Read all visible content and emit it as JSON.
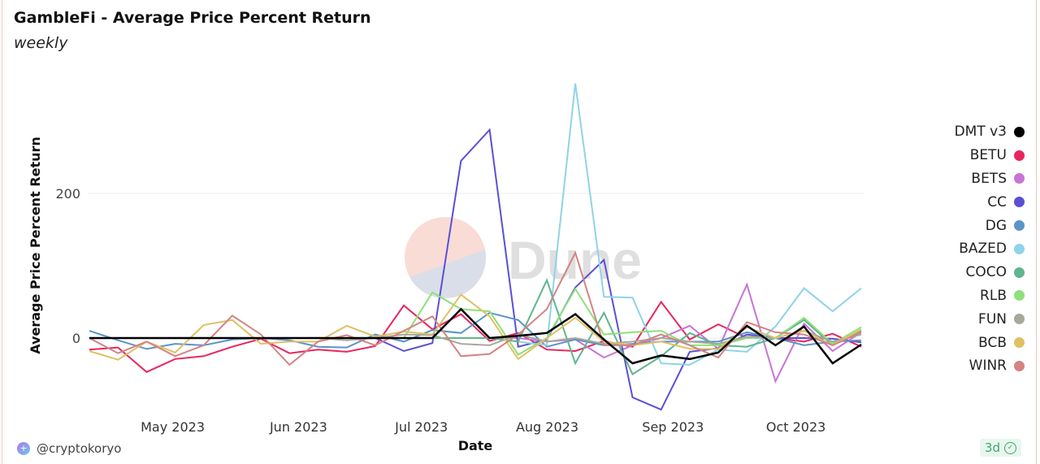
{
  "header": {
    "title": "GambleFi - Average Price Percent Return",
    "subtitle": "weekly"
  },
  "footer": {
    "author": "@cryptokoryo",
    "refresh_badge": "3d"
  },
  "watermark": "Dune",
  "chart_data": {
    "type": "line",
    "title": "GambleFi - Average Price Percent Return",
    "subtitle": "weekly",
    "xlabel": "Date",
    "ylabel": "Average Price Percent Return",
    "ylim": [
      -100,
      377
    ],
    "y_ticks": [
      0,
      200
    ],
    "x_tick_labels": [
      {
        "label": "May 2023",
        "week_index": 3
      },
      {
        "label": "Jun 2023",
        "week_index": 7.4
      },
      {
        "label": "Jul 2023",
        "week_index": 11.7
      },
      {
        "label": "Aug 2023",
        "week_index": 16.1
      },
      {
        "label": "Sep 2023",
        "week_index": 20.5
      },
      {
        "label": "Oct 2023",
        "week_index": 24.8
      }
    ],
    "grid": true,
    "legend_position": "right",
    "x": [
      "2023-04-10",
      "2023-04-17",
      "2023-04-24",
      "2023-05-01",
      "2023-05-08",
      "2023-05-15",
      "2023-05-22",
      "2023-05-29",
      "2023-06-05",
      "2023-06-12",
      "2023-06-19",
      "2023-06-26",
      "2023-07-03",
      "2023-07-10",
      "2023-07-17",
      "2023-07-24",
      "2023-07-31",
      "2023-08-07",
      "2023-08-14",
      "2023-08-21",
      "2023-08-28",
      "2023-09-04",
      "2023-09-11",
      "2023-09-18",
      "2023-09-25",
      "2023-10-02",
      "2023-10-09",
      "2023-10-16"
    ],
    "series": [
      {
        "name": "DMT v3",
        "color": "#000000",
        "values": [
          0,
          0,
          0,
          0,
          0,
          0,
          0,
          0,
          0,
          0,
          0,
          0,
          0,
          40,
          0,
          3,
          7,
          33,
          -2,
          -35,
          -24,
          -29,
          -20,
          17,
          -10,
          16,
          -35,
          -9
        ]
      },
      {
        "name": "BETU",
        "color": "#e8265e",
        "values": [
          -16,
          -13,
          -47,
          -29,
          -25,
          -12,
          -1,
          -21,
          -16,
          -19,
          -11,
          45,
          12,
          33,
          -4,
          7,
          -16,
          -18,
          -4,
          -12,
          50,
          -2,
          19,
          0,
          0,
          -5,
          6,
          -12
        ]
      },
      {
        "name": "BETS",
        "color": "#c774d6",
        "values": [
          null,
          null,
          null,
          null,
          null,
          null,
          null,
          null,
          null,
          null,
          null,
          0,
          0,
          0,
          0,
          0,
          -5,
          -2,
          -27,
          -10,
          0,
          17,
          -15,
          74,
          -60,
          20,
          -18,
          8
        ]
      },
      {
        "name": "CC",
        "color": "#5b4fd6",
        "values": [
          0,
          0,
          0,
          0,
          0,
          0,
          0,
          0,
          0,
          0,
          0,
          -18,
          -7,
          245,
          288,
          -12,
          -2,
          70,
          108,
          -82,
          -99,
          -19,
          -14,
          5,
          0,
          0,
          -1,
          -6
        ]
      },
      {
        "name": "DG",
        "color": "#5b93c9",
        "values": [
          10,
          -3,
          -15,
          -8,
          -10,
          -2,
          0,
          -3,
          -12,
          -13,
          5,
          -5,
          11,
          7,
          35,
          25,
          -12,
          -2,
          -10,
          -8,
          -5,
          -5,
          -5,
          8,
          0,
          -10,
          -5,
          -3
        ]
      },
      {
        "name": "BAZED",
        "color": "#8fd3e8",
        "values": [
          null,
          null,
          null,
          null,
          null,
          null,
          null,
          null,
          null,
          null,
          null,
          null,
          null,
          null,
          null,
          -5,
          -10,
          352,
          57,
          56,
          -35,
          -37,
          -16,
          -19,
          16,
          69,
          37,
          69
        ]
      },
      {
        "name": "COCO",
        "color": "#5fb58e",
        "values": [
          0,
          0,
          0,
          0,
          0,
          0,
          0,
          0,
          0,
          0,
          0,
          0,
          0,
          0,
          0,
          -5,
          80,
          -35,
          35,
          -50,
          -25,
          7,
          -10,
          -12,
          0,
          25,
          -10,
          10
        ]
      },
      {
        "name": "RLB",
        "color": "#8ee07a",
        "values": [
          0,
          0,
          0,
          0,
          0,
          0,
          0,
          0,
          0,
          0,
          0,
          0,
          63,
          40,
          37,
          -23,
          0,
          68,
          5,
          8,
          10,
          -10,
          -10,
          0,
          0,
          28,
          -8,
          15
        ]
      },
      {
        "name": "FUN",
        "color": "#a8a89a",
        "values": [
          0,
          0,
          0,
          0,
          0,
          0,
          0,
          0,
          0,
          -3,
          0,
          5,
          4,
          -8,
          -10,
          5,
          -5,
          0,
          -8,
          -5,
          0,
          -5,
          -8,
          2,
          0,
          10,
          -5,
          5
        ]
      },
      {
        "name": "BCB",
        "color": "#e0c064",
        "values": [
          -18,
          -30,
          -5,
          -20,
          18,
          25,
          -8,
          -5,
          -5,
          17,
          2,
          9,
          5,
          60,
          30,
          -29,
          0,
          28,
          -5,
          -10,
          -5,
          -15,
          -15,
          15,
          0,
          10,
          -10,
          12
        ]
      },
      {
        "name": "WINR",
        "color": "#d48383",
        "values": [
          0,
          -21,
          -5,
          -25,
          -10,
          31,
          5,
          -37,
          -5,
          4,
          -10,
          10,
          30,
          -25,
          -22,
          5,
          40,
          118,
          -10,
          -10,
          5,
          -10,
          -27,
          22,
          8,
          5,
          -10,
          8
        ]
      }
    ]
  }
}
